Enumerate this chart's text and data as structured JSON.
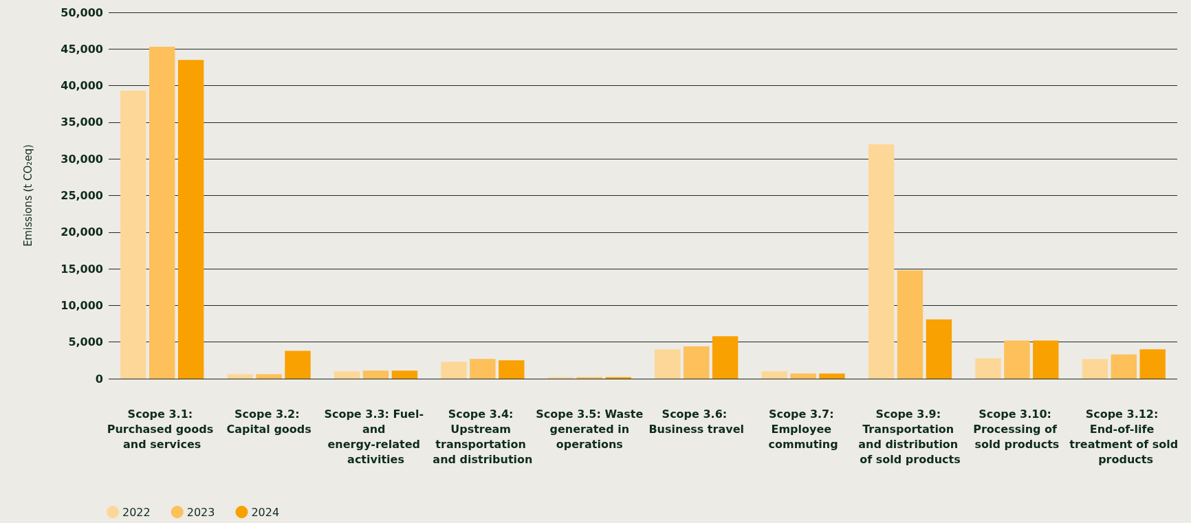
{
  "chart_data": {
    "type": "bar",
    "ylabel": "Emissions (t CO₂eq)",
    "categories": [
      "Scope 3.1: Purchased goods and services",
      "Scope 3.2: Capital goods",
      "Scope 3.3: Fuel- and energy-related activities",
      "Scope 3.4: Upstream transportation and distribution",
      "Scope 3.5: Waste generated in operations",
      "Scope 3.6: Business travel",
      "Scope 3.7: Employee commuting",
      "Scope 3.9: Transportation and distribution of sold products",
      "Scope 3.10: Processing of sold products",
      "Scope 3.12: End-of-life treatment of sold products"
    ],
    "series": [
      {
        "name": "2022",
        "color": "#fdd797",
        "values": [
          39300,
          600,
          1000,
          2300,
          200,
          4000,
          1000,
          32000,
          2800,
          2700
        ]
      },
      {
        "name": "2023",
        "color": "#fdc05a",
        "values": [
          45300,
          600,
          1100,
          2700,
          200,
          4400,
          700,
          14800,
          5200,
          3300
        ]
      },
      {
        "name": "2024",
        "color": "#f9a100",
        "values": [
          43500,
          3800,
          1100,
          2500,
          200,
          5800,
          700,
          8100,
          5200,
          4000
        ]
      }
    ],
    "ylim": [
      0,
      50000
    ],
    "yticks": [
      0,
      {
        "value": 5000,
        "label": "5,000"
      },
      {
        "value": 10000,
        "label": "10,000"
      },
      {
        "value": 15000,
        "label": "15,000"
      },
      {
        "value": 20000,
        "label": "20,000"
      },
      {
        "value": 25000,
        "label": "25,000"
      },
      {
        "value": 30000,
        "label": "30,000"
      },
      {
        "value": 35000,
        "label": "35,000"
      },
      {
        "value": 40000,
        "label": "40,000"
      },
      {
        "value": 45000,
        "label": "45,000"
      },
      {
        "value": 50000,
        "label": "50,000"
      }
    ],
    "grid": "y",
    "legend": "bottom left"
  }
}
